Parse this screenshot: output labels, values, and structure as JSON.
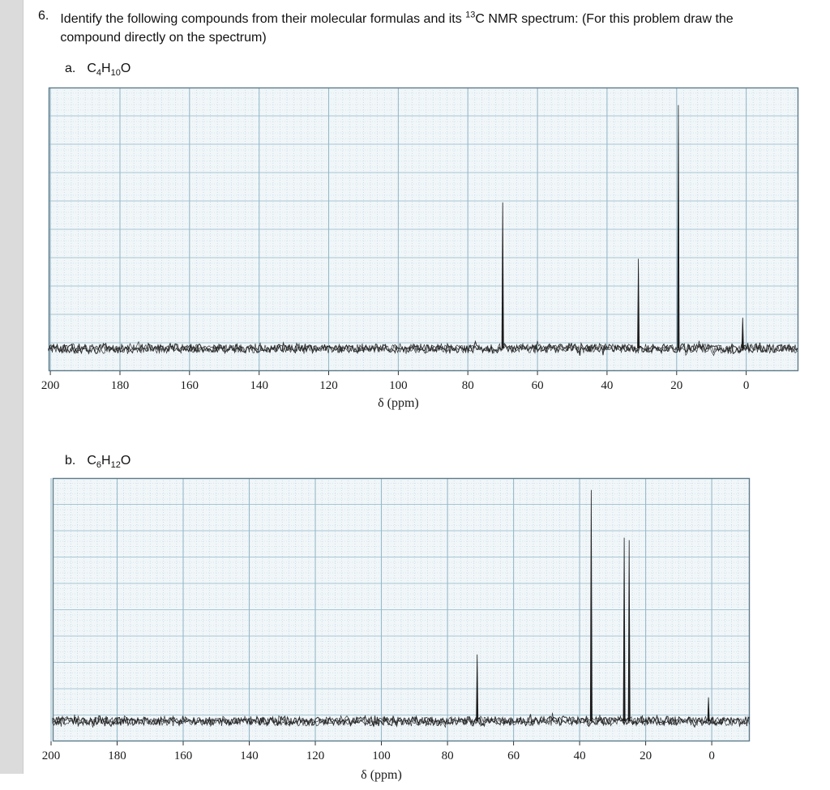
{
  "question": {
    "number": "6.",
    "text_before_sup": "Identify the following compounds from their molecular formulas and its ",
    "superscript": "13",
    "text_after_sup": "C NMR spectrum: (For this problem draw the",
    "line2": "compound directly on the spectrum)"
  },
  "parts": [
    {
      "label": "a.",
      "formula_c": "C",
      "formula_c_sub": "4",
      "formula_h": "H",
      "formula_h_sub": "10",
      "formula_o": "O"
    },
    {
      "label": "b.",
      "formula_c": "C",
      "formula_c_sub": "6",
      "formula_h": "H",
      "formula_h_sub": "12",
      "formula_o": "O"
    }
  ],
  "chart_data": [
    {
      "id": "spectrum-a",
      "type": "line",
      "title": "13C NMR spectrum of C4H10O",
      "xlabel": "δ (ppm)",
      "x_axis_reversed": true,
      "grid": true,
      "x_ticks": [
        200,
        180,
        160,
        140,
        120,
        100,
        80,
        60,
        40,
        20,
        0
      ],
      "xlim_ppm": [
        200.5,
        -15
      ],
      "peaks": [
        {
          "ppm": 70,
          "rel_height": 0.57
        },
        {
          "ppm": 31,
          "rel_height": 0.35
        },
        {
          "ppm": 19.5,
          "rel_height": 0.95
        },
        {
          "ppm": 1,
          "rel_height": 0.12
        }
      ],
      "noise_baseline": true
    },
    {
      "id": "spectrum-b",
      "type": "line",
      "title": "13C NMR spectrum of C6H12O",
      "xlabel": "δ (ppm)",
      "x_axis_reversed": true,
      "grid": true,
      "x_ticks": [
        200,
        180,
        160,
        140,
        120,
        100,
        80,
        60,
        40,
        20,
        0
      ],
      "xlim_ppm": [
        199.5,
        -11.5
      ],
      "peaks": [
        {
          "ppm": 71,
          "rel_height": 0.28
        },
        {
          "ppm": 36.5,
          "rel_height": 0.97
        },
        {
          "ppm": 26.5,
          "rel_height": 0.77
        },
        {
          "ppm": 25,
          "rel_height": 0.76
        },
        {
          "ppm": 1,
          "rel_height": 0.1
        }
      ],
      "noise_baseline": true
    }
  ]
}
